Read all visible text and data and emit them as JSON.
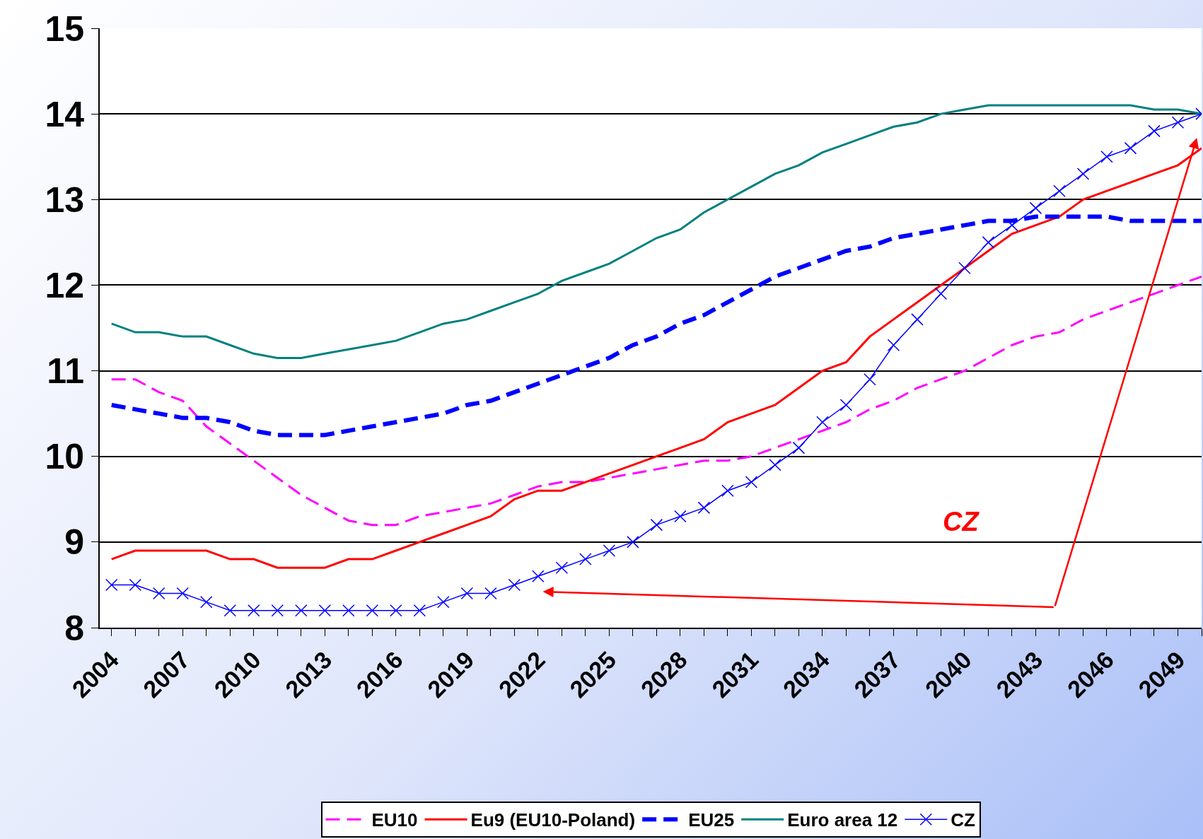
{
  "chart_data": {
    "type": "line",
    "x": [
      2004,
      2005,
      2006,
      2007,
      2008,
      2009,
      2010,
      2011,
      2012,
      2013,
      2014,
      2015,
      2016,
      2017,
      2018,
      2019,
      2020,
      2021,
      2022,
      2023,
      2024,
      2025,
      2026,
      2027,
      2028,
      2029,
      2030,
      2031,
      2032,
      2033,
      2034,
      2035,
      2036,
      2037,
      2038,
      2039,
      2040,
      2041,
      2042,
      2043,
      2044,
      2045,
      2046,
      2047,
      2048,
      2049,
      2050
    ],
    "xlim": [
      2003.5,
      2050
    ],
    "xticks": [
      2004,
      {
        "value": 2005,
        "label": null
      },
      {
        "value": 2006,
        "label": null
      },
      2007,
      {
        "value": 2008,
        "label": null
      },
      {
        "value": 2009,
        "label": null
      },
      2010,
      {
        "value": 2011,
        "label": null
      },
      {
        "value": 2012,
        "label": null
      },
      2013,
      {
        "value": 2014,
        "label": null
      },
      {
        "value": 2015,
        "label": null
      },
      2016,
      {
        "value": 2017,
        "label": null
      },
      {
        "value": 2018,
        "label": null
      },
      2019,
      {
        "value": 2020,
        "label": null
      },
      {
        "value": 2021,
        "label": null
      },
      2022,
      {
        "value": 2023,
        "label": null
      },
      {
        "value": 2024,
        "label": null
      },
      2025,
      {
        "value": 2026,
        "label": null
      },
      {
        "value": 2027,
        "label": null
      },
      2028,
      {
        "value": 2029,
        "label": null
      },
      {
        "value": 2030,
        "label": null
      },
      2031,
      {
        "value": 2032,
        "label": null
      },
      {
        "value": 2033,
        "label": null
      },
      2034,
      {
        "value": 2035,
        "label": null
      },
      {
        "value": 2036,
        "label": null
      },
      2037,
      {
        "value": 2038,
        "label": null
      },
      {
        "value": 2039,
        "label": null
      },
      2040,
      {
        "value": 2041,
        "label": null
      },
      {
        "value": 2042,
        "label": null
      },
      2043,
      {
        "value": 2044,
        "label": null
      },
      {
        "value": 2045,
        "label": null
      },
      2046,
      {
        "value": 2047,
        "label": null
      },
      {
        "value": 2048,
        "label": null
      },
      2049,
      {
        "value": 2050,
        "label": null
      }
    ],
    "ylim": [
      8,
      15
    ],
    "yticks": [
      8,
      9,
      10,
      11,
      12,
      13,
      14,
      15
    ],
    "grid": "y",
    "legend": "bottom",
    "annotations": [
      "CZ"
    ],
    "series": [
      {
        "name": "EU10",
        "color": "#ff00ff",
        "line_style": "dashed",
        "marker": "none",
        "values": [
          10.9,
          10.9,
          10.75,
          10.65,
          10.35,
          10.15,
          9.95,
          9.75,
          9.55,
          9.4,
          9.25,
          9.2,
          9.2,
          9.3,
          9.35,
          9.4,
          9.45,
          9.55,
          9.65,
          9.7,
          9.7,
          9.75,
          9.8,
          9.85,
          9.9,
          9.95,
          9.95,
          10,
          10.1,
          10.2,
          10.3,
          10.4,
          10.55,
          10.65,
          10.8,
          10.9,
          11,
          11.15,
          11.3,
          11.4,
          11.45,
          11.6,
          11.7,
          11.8,
          11.9,
          12,
          12.1
        ]
      },
      {
        "name": "Eu9 (EU10-Poland)",
        "color": "#ff0000",
        "line_style": "solid",
        "marker": "none",
        "values": [
          8.8,
          8.9,
          8.9,
          8.9,
          8.9,
          8.8,
          8.8,
          8.7,
          8.7,
          8.7,
          8.8,
          8.8,
          8.9,
          9.0,
          9.1,
          9.2,
          9.3,
          9.5,
          9.6,
          9.6,
          9.7,
          9.8,
          9.9,
          10.0,
          10.1,
          10.2,
          10.4,
          10.5,
          10.6,
          10.8,
          11.0,
          11.1,
          11.4,
          11.6,
          11.8,
          12.0,
          12.2,
          12.4,
          12.6,
          12.7,
          12.8,
          13.0,
          13.1,
          13.2,
          13.3,
          13.4,
          13.6
        ]
      },
      {
        "name": "EU25",
        "color": "#0000ff",
        "line_style": "dashed",
        "marker": "none",
        "values": [
          10.6,
          10.55,
          10.5,
          10.45,
          10.45,
          10.4,
          10.3,
          10.25,
          10.25,
          10.25,
          10.3,
          10.35,
          10.4,
          10.45,
          10.5,
          10.6,
          10.65,
          10.75,
          10.85,
          10.95,
          11.05,
          11.15,
          11.3,
          11.4,
          11.55,
          11.65,
          11.8,
          11.95,
          12.1,
          12.2,
          12.3,
          12.4,
          12.45,
          12.55,
          12.6,
          12.65,
          12.7,
          12.75,
          12.75,
          12.8,
          12.8,
          12.8,
          12.8,
          12.75,
          12.75,
          12.75,
          12.75
        ]
      },
      {
        "name": "Euro area 12",
        "color": "#008080",
        "line_style": "solid",
        "marker": "none",
        "values": [
          11.55,
          11.45,
          11.45,
          11.4,
          11.4,
          11.3,
          11.2,
          11.15,
          11.15,
          11.2,
          11.25,
          11.3,
          11.35,
          11.45,
          11.55,
          11.6,
          11.7,
          11.8,
          11.9,
          12.05,
          12.15,
          12.25,
          12.4,
          12.55,
          12.65,
          12.85,
          13,
          13.15,
          13.3,
          13.4,
          13.55,
          13.65,
          13.75,
          13.85,
          13.9,
          14,
          14.05,
          14.1,
          14.1,
          14.1,
          14.1,
          14.1,
          14.1,
          14.1,
          14.05,
          14.05,
          14
        ]
      },
      {
        "name": "CZ",
        "color": "#0000ff",
        "line_style": "solid",
        "marker": "cross",
        "values": [
          8.5,
          8.5,
          8.4,
          8.4,
          8.3,
          8.2,
          8.2,
          8.2,
          8.2,
          8.2,
          8.2,
          8.2,
          8.2,
          8.2,
          8.3,
          8.4,
          8.4,
          8.5,
          8.6,
          8.7,
          8.8,
          8.9,
          9.0,
          9.2,
          9.3,
          9.4,
          9.6,
          9.7,
          9.9,
          10.1,
          10.4,
          10.6,
          10.9,
          11.3,
          11.6,
          11.9,
          12.2,
          12.5,
          12.7,
          12.9,
          13.1,
          13.3,
          13.5,
          13.6,
          13.8,
          13.9,
          14.0
        ]
      }
    ]
  }
}
